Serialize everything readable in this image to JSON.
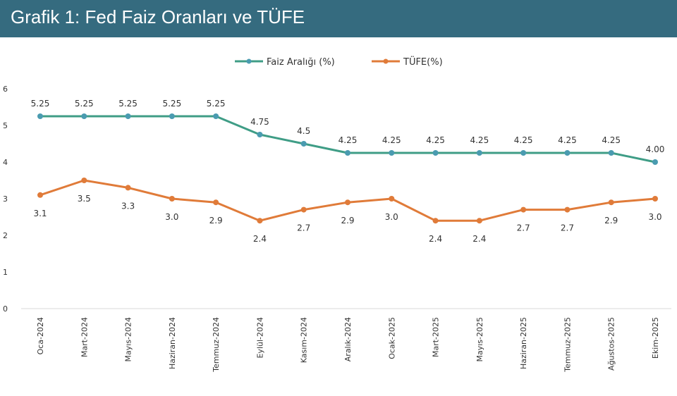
{
  "header": {
    "title": "Grafik 1: Fed Faiz Oranları ve TÜFE"
  },
  "chart_data": {
    "type": "line",
    "title": "Grafik 1: Fed Faiz Oranları ve TÜFE",
    "xlabel": "",
    "ylabel": "",
    "ylim": [
      0,
      6
    ],
    "yticks": [
      "0",
      "1",
      "2",
      "3",
      "4",
      "5",
      "6"
    ],
    "grid": false,
    "legend_position": "top-center",
    "categories": [
      "Oca-2024",
      "Mart-2024",
      "Mayıs-2024",
      "Haziran-2024",
      "Temmuz-2024",
      "Eylül-2024",
      "Kasım-2024",
      "Aralık-2024",
      "Ocak-2025",
      "Mart-2025",
      "Mayıs-2025",
      "Haziran-2025",
      "Temmuz-2025",
      "Ağustos-2025",
      "Ekim-2025"
    ],
    "series": [
      {
        "name": "Faiz Aralığı (%)",
        "color": "#3f9d86",
        "marker_color": "#4a9bb0",
        "values": [
          5.25,
          5.25,
          5.25,
          5.25,
          5.25,
          4.75,
          4.5,
          4.25,
          4.25,
          4.25,
          4.25,
          4.25,
          4.25,
          4.25,
          4.0
        ],
        "labels": [
          "5.25",
          "5.25",
          "5.25",
          "5.25",
          "5.25",
          "4.75",
          "4.5",
          "4.25",
          "4.25",
          "4.25",
          "4.25",
          "4.25",
          "4.25",
          "4.25",
          "4.00"
        ]
      },
      {
        "name": "TÜFE(%)",
        "color": "#e07b39",
        "marker_color": "#e07b39",
        "values": [
          3.1,
          3.5,
          3.3,
          3.0,
          2.9,
          2.4,
          2.7,
          2.9,
          3.0,
          2.4,
          2.4,
          2.7,
          2.7,
          2.9,
          3.0
        ],
        "labels": [
          "3.1",
          "3.5",
          "3.3",
          "3.0",
          "2.9",
          "2.4",
          "2.7",
          "2.9",
          "3.0",
          "2.4",
          "2.4",
          "2.7",
          "2.7",
          "2.9",
          "3.0"
        ]
      }
    ]
  }
}
